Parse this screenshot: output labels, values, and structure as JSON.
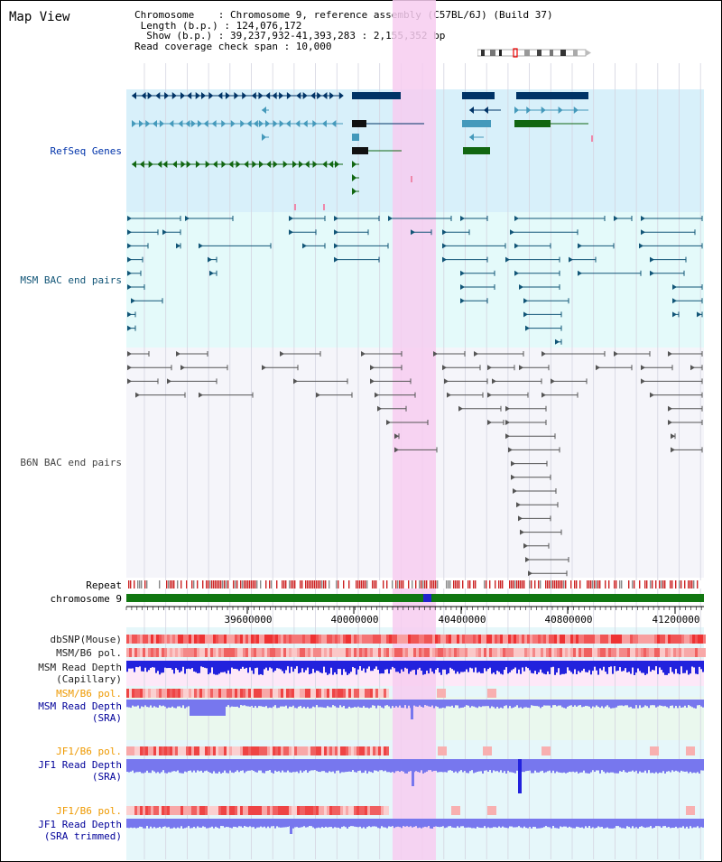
{
  "page_title": "Map View",
  "info": {
    "chromosome_line": "Chromosome    : Chromosome 9, reference assembly (C57BL/6J) (Build 37)",
    "length_line": " Length (b.p.) : 124,076,172",
    "show_line": "  Show (b.p.) : 39,237,932-41,393,283 : 2,155,352 bp",
    "coverage_line": "Read coverage check span : 10,000"
  },
  "track_labels": {
    "refseq": "RefSeq Genes",
    "msm_bac": "MSM BAC end pairs",
    "b6n_bac": "B6N BAC end pairs",
    "repeat": "Repeat",
    "chromosome": "chromosome 9",
    "dbsnp": "dbSNP(Mouse)",
    "msm_b6_pol_1": "MSM/B6 pol.",
    "msm_read_depth_cap_1": "MSM Read Depth",
    "msm_read_depth_cap_2": "(Capillary)",
    "msm_b6_pol_2": "MSM/B6 pol.",
    "msm_read_depth_sra_1": "MSM Read Depth",
    "msm_read_depth_sra_2": "(SRA)",
    "jf1_b6_pol_1": "JF1/B6 pol.",
    "jf1_read_depth_sra_1": "JF1 Read Depth",
    "jf1_read_depth_sra_2": "(SRA)",
    "jf1_b6_pol_2": "JF1/B6 pol.",
    "jf1_read_depth_trim_1": "JF1 Read Depth",
    "jf1_read_depth_trim_2": "(SRA trimmed)"
  },
  "ruler": {
    "ticks": [
      "39600000",
      "40000000",
      "40400000",
      "40800000",
      "41200000"
    ]
  },
  "colors": {
    "highlight": "#f7ccf0",
    "refseq_bg": "#d8f0fa",
    "msm_bg": "#e4fafa",
    "gene_dark": "#003366",
    "gene_light": "#4499bb",
    "gene_green": "#116611",
    "chromosome_green": "#117711",
    "repeat_red": "#cc2222",
    "depth_blue": "#2222dd",
    "depth_light_blue": "#7777ee"
  }
}
